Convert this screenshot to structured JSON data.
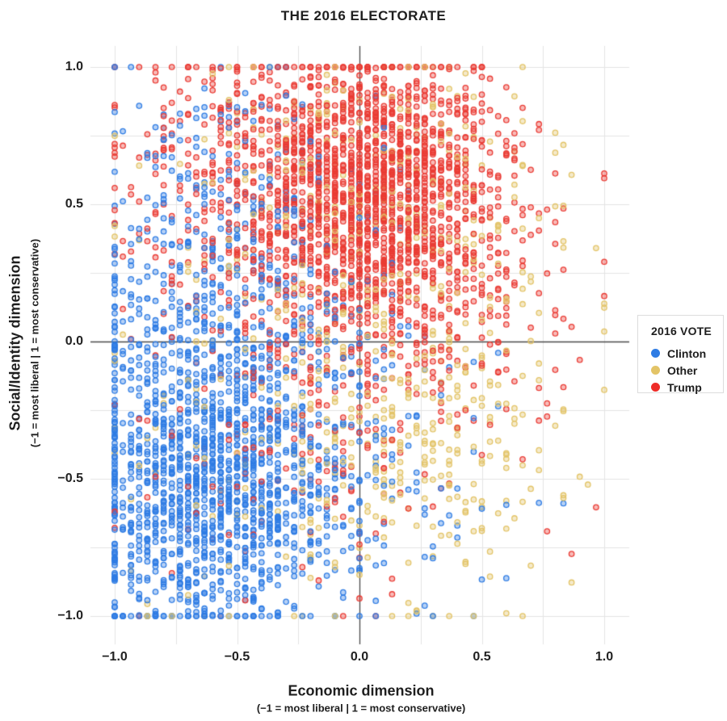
{
  "title": "THE 2016 ELECTORATE",
  "x_axis": {
    "label": "Economic dimension",
    "sublabel": "(−1 = most liberal | 1 = most conservative)",
    "ticks": [
      "−1.0",
      "−0.5",
      "0.0",
      "0.5",
      "1.0"
    ],
    "tick_values": [
      -1,
      -0.5,
      0,
      0.5,
      1
    ]
  },
  "y_axis": {
    "label": "Social/Identity dimension",
    "sublabel": "(−1 = most liberal | 1 = most conservative)",
    "ticks": [
      "−1.0",
      "−0.5",
      "0.0",
      "0.5",
      "1.0"
    ],
    "tick_values": [
      -1,
      -0.5,
      0,
      0.5,
      1
    ]
  },
  "legend": {
    "title": "2016 VOTE",
    "items": [
      {
        "label": "Clinton",
        "color": "#2e7ce4"
      },
      {
        "label": "Other",
        "color": "#e3c467"
      },
      {
        "label": "Trump",
        "color": "#ee2c28"
      }
    ]
  },
  "colors": {
    "background": "#ffffff",
    "gridline": "#e4e4e4",
    "zero_line": "#4a4a4a",
    "text": "#1e1e1e",
    "legend_border": "#dcdcdc"
  },
  "chart_data": {
    "type": "scatter",
    "title": "THE 2016 ELECTORATE",
    "xlabel": "Economic dimension (−1 = most liberal | 1 = most conservative)",
    "ylabel": "Social/Identity dimension (−1 = most liberal | 1 = most conservative)",
    "xlim": [
      -1.1,
      1.1
    ],
    "ylim": [
      -1.08,
      1.09
    ],
    "grid": true,
    "grid_step": 0.25,
    "zero_lines": true,
    "legend_position": "right",
    "point_style": {
      "radius": 3.2,
      "stroke_width": 1.3,
      "fill_alpha": 0.35
    },
    "clamp_range": [
      -1,
      1
    ],
    "x_quantization": 0.033333,
    "seed": 42,
    "series": [
      {
        "name": "Clinton",
        "color": "#2e7ce4",
        "summary": "Dense cluster in the liberal/liberal lower-left quadrant, with vertical striping from quantized economic scores and pile-up columns/rows at x = −1 and y = −1; thins out toward the upper left.",
        "clusters": [
          {
            "n": 1150,
            "cx": -0.62,
            "cy": -0.55,
            "sx": 0.26,
            "sy": 0.27
          },
          {
            "n": 330,
            "cx": -0.55,
            "cy": -0.05,
            "sx": 0.3,
            "sy": 0.33
          },
          {
            "n": 260,
            "cx": -0.55,
            "cy": 0.42,
            "sx": 0.28,
            "sy": 0.3
          },
          {
            "n": 160,
            "cx": -0.1,
            "cy": -0.45,
            "sx": 0.33,
            "sy": 0.3
          }
        ]
      },
      {
        "name": "Other",
        "color": "#e3c467",
        "summary": "Sparse, spread widely; relatively most visible in the lower-right (conservative-economy / liberal-identity) quadrant and sprinkled through the upper cloud.",
        "clusters": [
          {
            "n": 210,
            "cx": 0.15,
            "cy": 0.5,
            "sx": 0.35,
            "sy": 0.28
          },
          {
            "n": 240,
            "cx": 0.25,
            "cy": -0.35,
            "sx": 0.3,
            "sy": 0.3
          },
          {
            "n": 200,
            "cx": -0.3,
            "cy": -0.05,
            "sx": 0.45,
            "sy": 0.5
          }
        ]
      },
      {
        "name": "Trump",
        "color": "#ea3b34",
        "summary": "Dense cloud across the upper (conservative social/identity) half centered slightly right of 0 economically, piling up in a row at y = 1; scattered points below the y = 0 line.",
        "clusters": [
          {
            "n": 1400,
            "cx": 0.08,
            "cy": 0.56,
            "sx": 0.27,
            "sy": 0.25
          },
          {
            "n": 430,
            "cx": -0.35,
            "cy": 0.6,
            "sx": 0.33,
            "sy": 0.26
          },
          {
            "n": 300,
            "cx": 0.12,
            "cy": 0.1,
            "sx": 0.35,
            "sy": 0.25
          },
          {
            "n": 150,
            "cx": -0.25,
            "cy": -0.35,
            "sx": 0.42,
            "sy": 0.33
          }
        ]
      }
    ]
  }
}
